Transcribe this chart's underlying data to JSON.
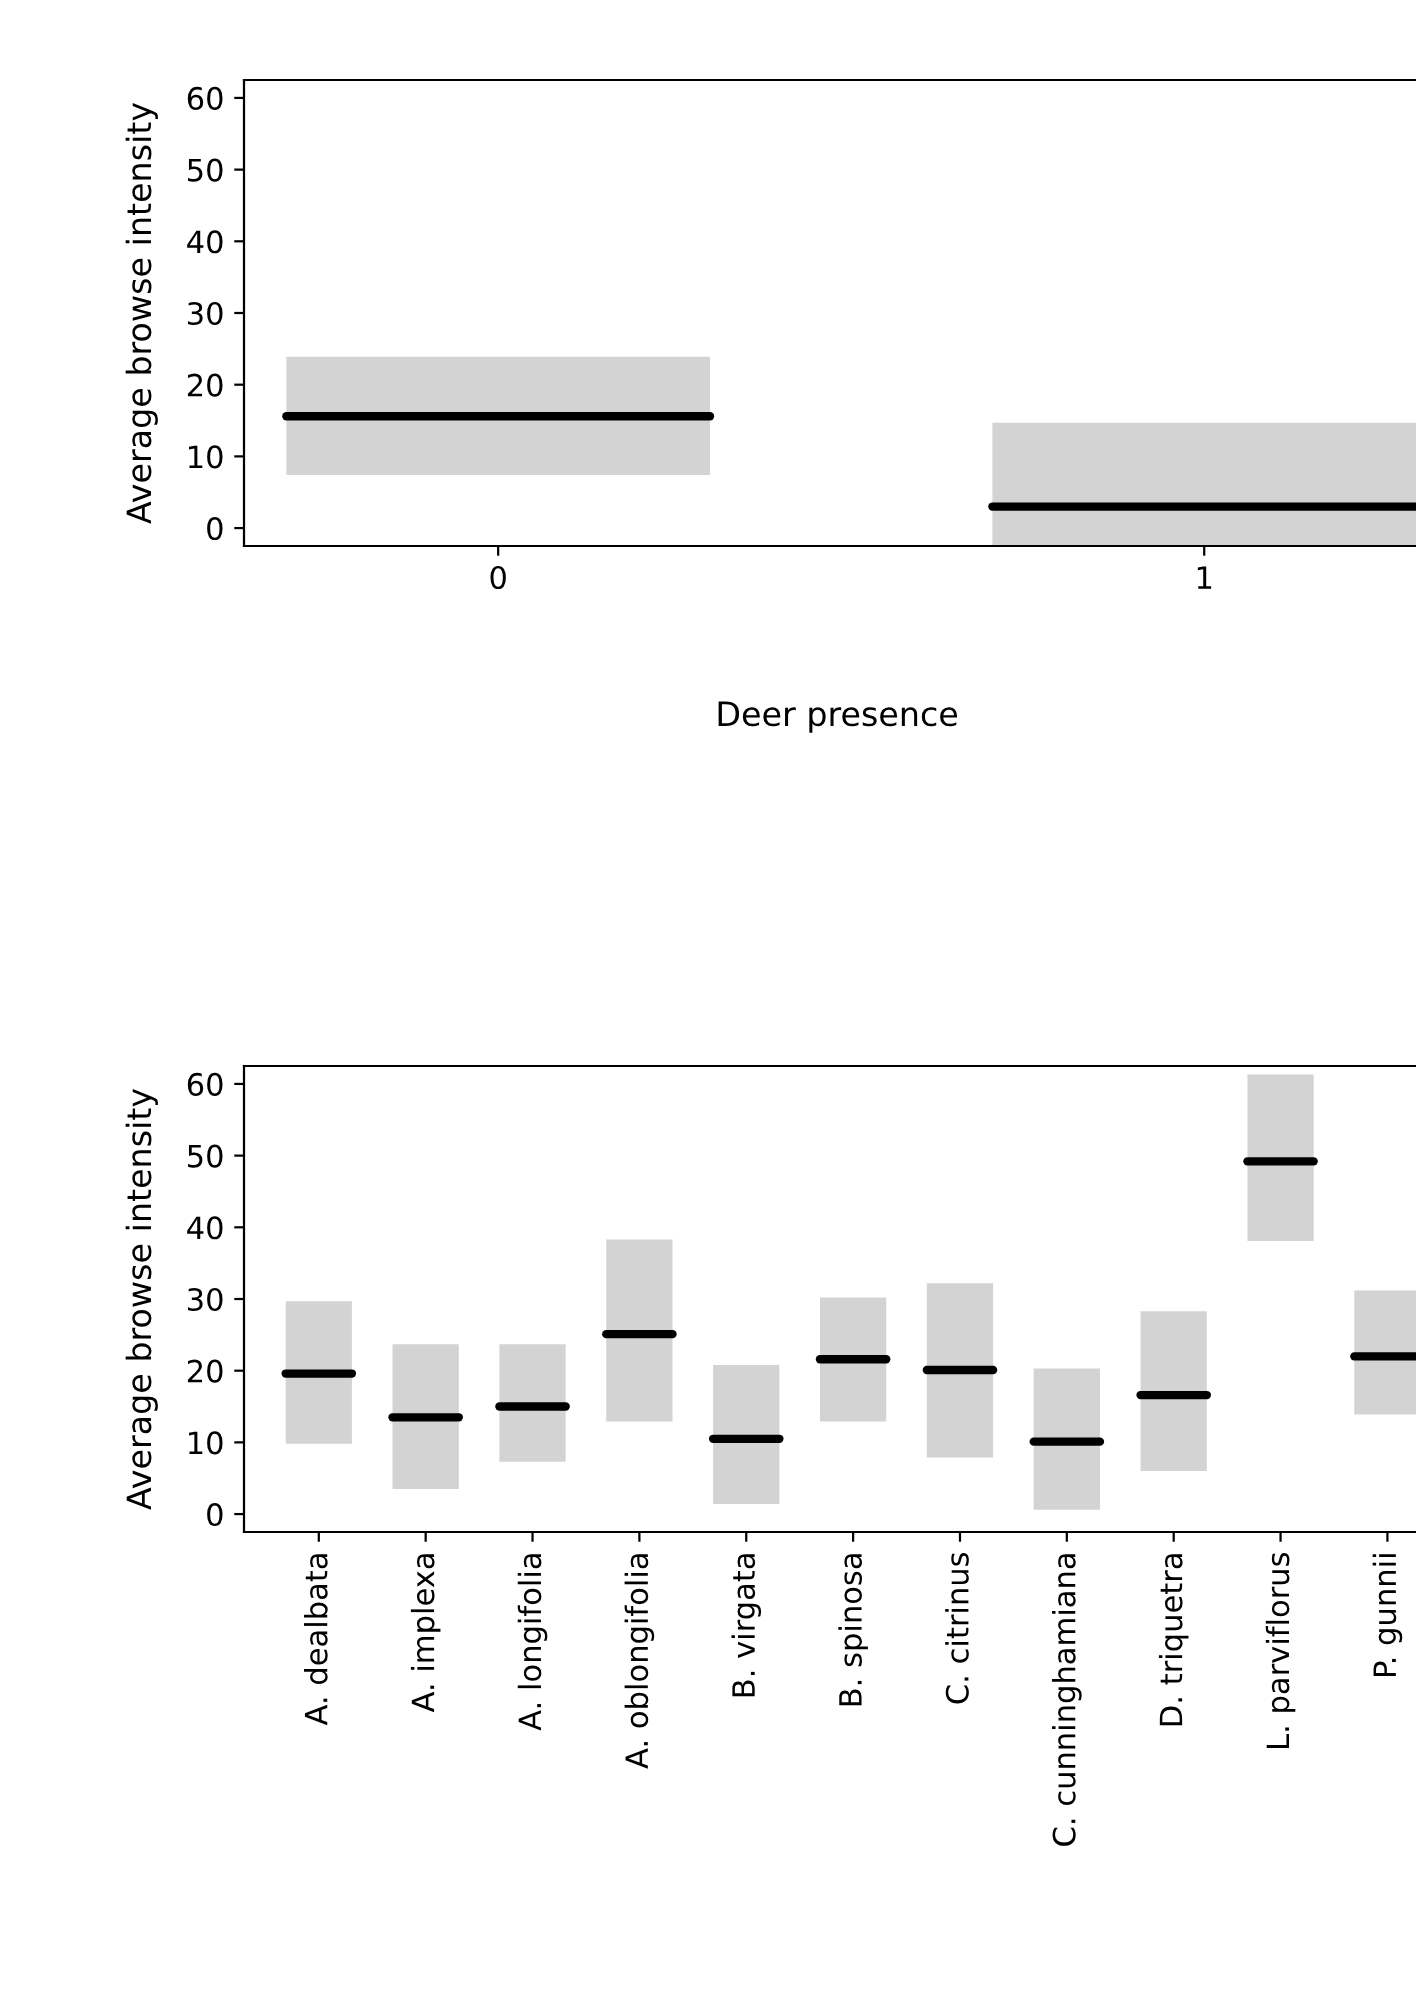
{
  "chart_data": [
    {
      "type": "box",
      "xlabel": "Deer presence",
      "ylabel": "Average browse intensity",
      "categories": [
        "0",
        "1"
      ],
      "ylim": [
        -2.5,
        62.5
      ],
      "yticks": [
        0,
        10,
        20,
        30,
        40,
        50,
        60
      ],
      "grid": false,
      "series": [
        {
          "color": "#d3d3d3",
          "boxes": [
            {
              "q1": 7.4,
              "median": 15.6,
              "q3": 23.9
            },
            {
              "q1": -2.5,
              "median": 3.0,
              "q3": 14.7
            }
          ]
        }
      ]
    },
    {
      "type": "box",
      "ylabel": "Average browse intensity",
      "categories": [
        "A. dealbata",
        "A. implexa",
        "A. longifolia",
        "A. oblongifolia",
        "B. virgata",
        "B. spinosa",
        "C. citrinus",
        "C. cunninghamiana",
        "D. triquetra",
        "L. parviflorus",
        "P. gunnii"
      ],
      "ylim": [
        -2.5,
        62.5
      ],
      "yticks": [
        0,
        10,
        20,
        30,
        40,
        50,
        60
      ],
      "grid": false,
      "series": [
        {
          "color": "#d3d3d3",
          "boxes": [
            {
              "q1": 9.8,
              "median": 19.6,
              "q3": 29.7
            },
            {
              "q1": 3.5,
              "median": 13.5,
              "q3": 23.7
            },
            {
              "q1": 7.3,
              "median": 15.0,
              "q3": 23.7
            },
            {
              "q1": 12.9,
              "median": 25.1,
              "q3": 38.3
            },
            {
              "q1": 1.4,
              "median": 10.5,
              "q3": 20.8
            },
            {
              "q1": 12.9,
              "median": 21.6,
              "q3": 30.2
            },
            {
              "q1": 7.9,
              "median": 20.1,
              "q3": 32.2
            },
            {
              "q1": 0.6,
              "median": 10.1,
              "q3": 20.3
            },
            {
              "q1": 6.0,
              "median": 16.6,
              "q3": 28.3
            },
            {
              "q1": 38.1,
              "median": 49.2,
              "q3": 61.3
            },
            {
              "q1": 13.9,
              "median": 22.0,
              "q3": 31.2
            }
          ]
        }
      ]
    }
  ]
}
